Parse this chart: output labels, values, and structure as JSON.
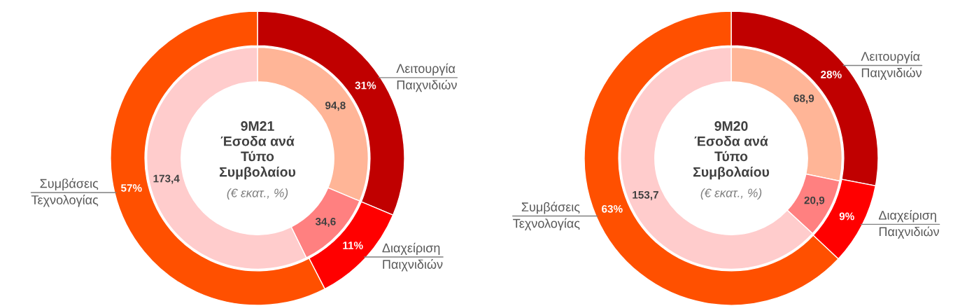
{
  "chart_data": [
    {
      "type": "donut",
      "title": "9M21\nΈσοδα ανά\nΤύπο\nΣυμβολαίου",
      "subtitle": "(€ εκατ., %)",
      "categories": [
        "Λειτουργία\nΠαιχνιδιών",
        "Διαχείριση\nΠαιχνιδιών",
        "Συμβάσεις\nΤεχνολογίας"
      ],
      "series": [
        {
          "values": [
            94.8,
            34.6,
            173.4
          ],
          "colors": [
            "#ffb597",
            "#ff8080",
            "#ffcccc"
          ],
          "value_labels": [
            "94,8",
            "34,6",
            "173,4"
          ]
        },
        {
          "values": [
            31,
            11,
            57
          ],
          "colors": [
            "#c00000",
            "#ff0000",
            "#ff5000"
          ],
          "value_labels": [
            "31%",
            "11%",
            "57%"
          ]
        }
      ]
    },
    {
      "type": "donut",
      "title": "9M20\nΈσοδα ανά\nΤύπο\nΣυμβολαίου",
      "subtitle": "(€ εκατ., %)",
      "categories": [
        "Λειτουργία\nΠαιχνιδιών",
        "Διαχείριση\nΠαιχνιδιών",
        "Συμβάσεις\nΤεχνολογίας"
      ],
      "series": [
        {
          "values": [
            28,
            9,
            63
          ],
          "colors": [
            "#c00000",
            "#ff0000",
            "#ff5000"
          ],
          "value_labels": [
            "28%",
            "9%",
            "63%"
          ]
        },
        {
          "values": [
            68.9,
            20.9,
            153.7
          ],
          "colors": [
            "#ffb597",
            "#ff8080",
            "#ffcccc"
          ],
          "value_labels": [
            "68,9",
            "20,9",
            "153,7"
          ]
        }
      ]
    }
  ]
}
